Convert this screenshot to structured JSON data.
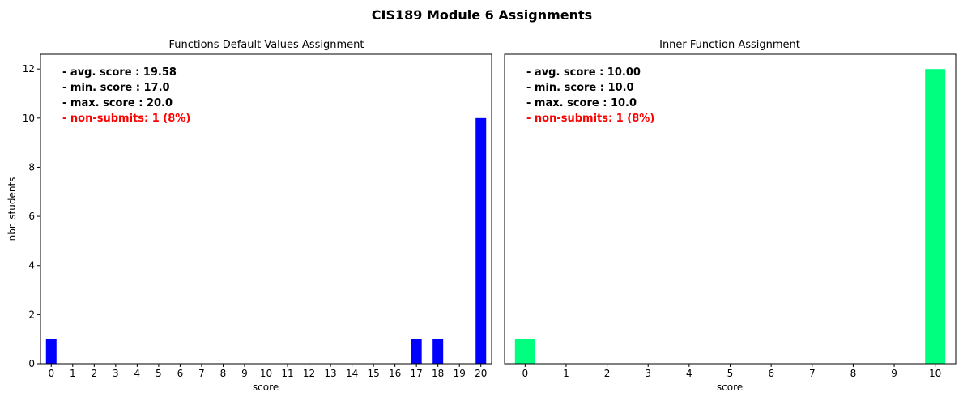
{
  "suptitle": "CIS189 Module 6 Assignments",
  "colors": {
    "left_bar": "#0000ff",
    "right_bar": "#00ff7f",
    "alert": "#ff0000"
  },
  "chart_data": [
    {
      "type": "bar",
      "title": "Functions Default Values Assignment",
      "xlabel": "score",
      "ylabel": "nbr. students",
      "ylim": [
        0,
        12.6
      ],
      "yticks": [
        0,
        2,
        4,
        6,
        8,
        10,
        12
      ],
      "categories": [
        "0",
        "1",
        "2",
        "3",
        "4",
        "5",
        "6",
        "7",
        "8",
        "9",
        "10",
        "11",
        "12",
        "13",
        "14",
        "15",
        "16",
        "17",
        "18",
        "19",
        "20"
      ],
      "values": [
        1,
        0,
        0,
        0,
        0,
        0,
        0,
        0,
        0,
        0,
        0,
        0,
        0,
        0,
        0,
        0,
        0,
        1,
        1,
        0,
        10
      ],
      "bar_color": "#0000ff",
      "stats": [
        "- avg. score : 19.58",
        "- min. score : 17.0",
        "- max. score : 20.0"
      ],
      "non_submits": "- non-submits: 1 (8%)"
    },
    {
      "type": "bar",
      "title": "Inner Function Assignment",
      "xlabel": "score",
      "ylabel": "",
      "ylim": [
        0,
        12.6
      ],
      "yticks": [],
      "categories": [
        "0",
        "1",
        "2",
        "3",
        "4",
        "5",
        "6",
        "7",
        "8",
        "9",
        "10"
      ],
      "values": [
        1,
        0,
        0,
        0,
        0,
        0,
        0,
        0,
        0,
        0,
        12
      ],
      "bar_color": "#00ff7f",
      "stats": [
        "- avg. score : 10.00",
        "- min. score : 10.0",
        "- max. score : 10.0"
      ],
      "non_submits": "- non-submits: 1 (8%)"
    }
  ]
}
